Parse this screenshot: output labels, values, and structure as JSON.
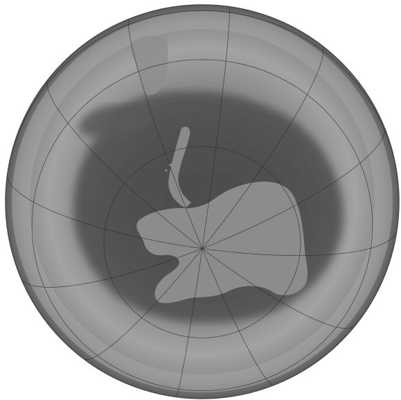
{
  "map": {
    "projection": "orthographic-south-polar",
    "center_latitude": -90,
    "meridian_spacing_deg": 30,
    "parallel_spacing_deg": 30,
    "colors": {
      "background": "#ffffff",
      "globe_rim": "#5c5c5c",
      "globe_light_band": "#9d9d9d",
      "globe_mid": "#7a7a7a",
      "ozone_hole": "#505050",
      "land": "#8c8c8c",
      "graticule": "#2f2f2f"
    }
  }
}
